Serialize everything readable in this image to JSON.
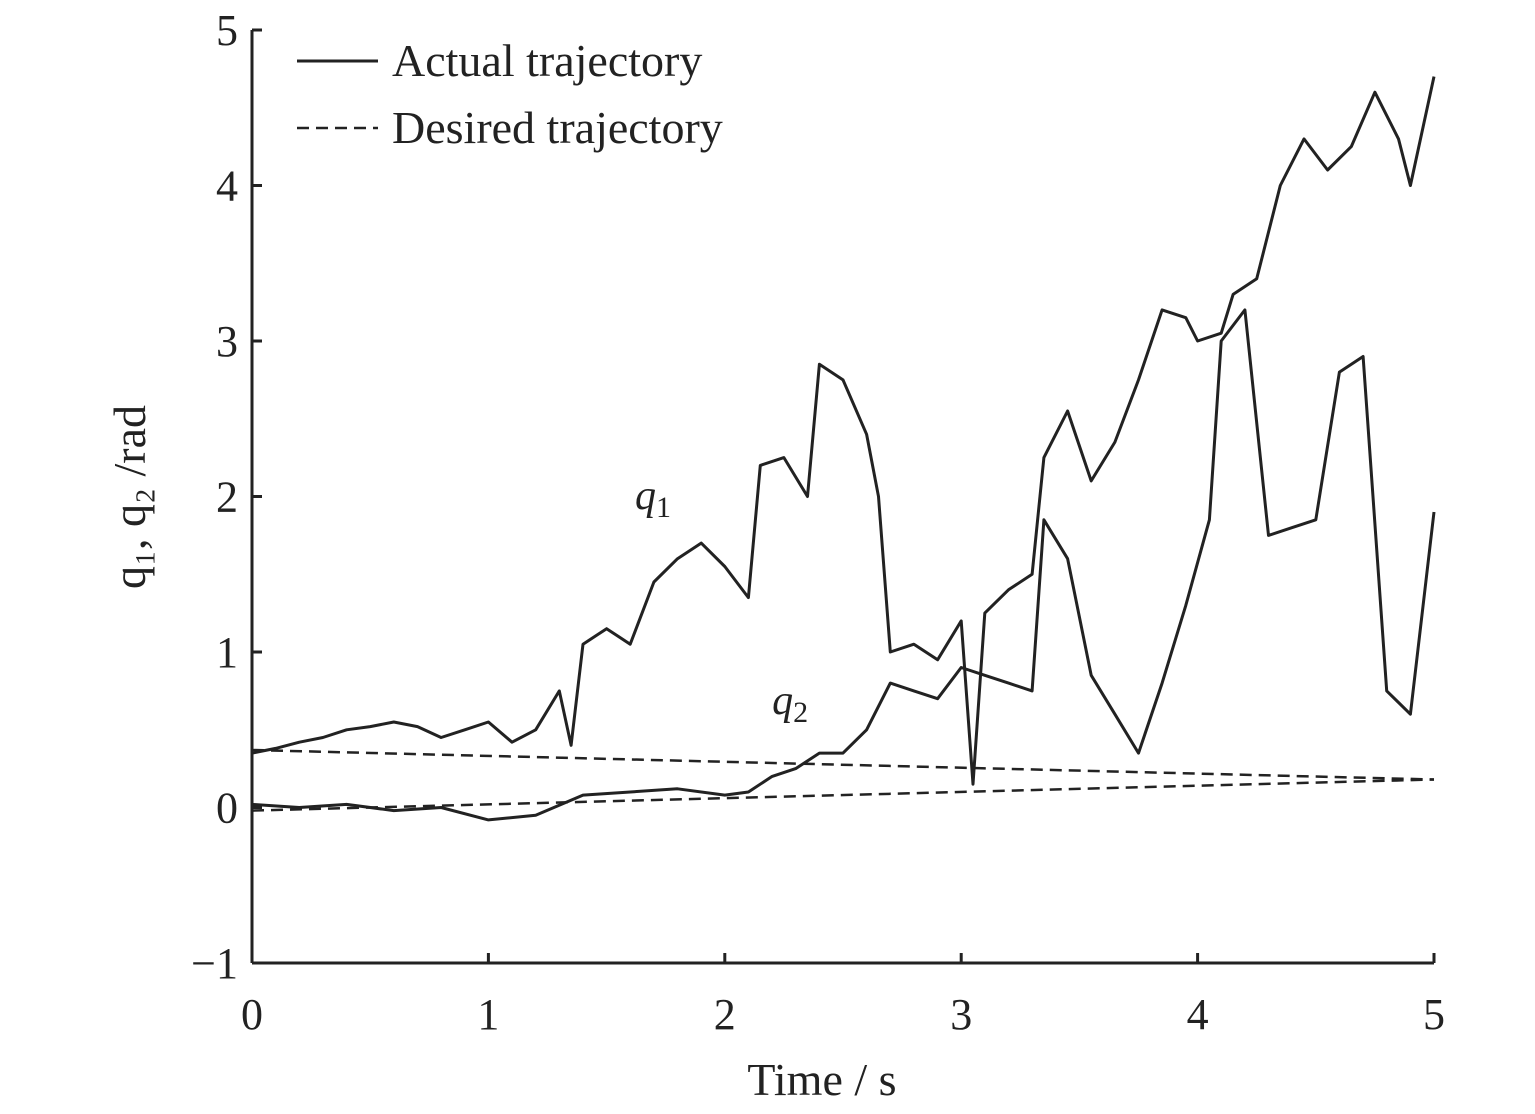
{
  "chart_data": {
    "type": "line",
    "title": "",
    "xlabel": "Time / s",
    "ylabel": "q₁, q₂ /rad",
    "xlim": [
      0,
      5
    ],
    "ylim": [
      -1,
      5
    ],
    "xticks": [
      "0",
      "1",
      "2",
      "3",
      "4",
      "5"
    ],
    "yticks": [
      "−1",
      "0",
      "1",
      "2",
      "3",
      "4",
      "5"
    ],
    "grid": false,
    "legend": {
      "position": "top-left",
      "entries": [
        {
          "label": "Actual trajectory",
          "style": "solid"
        },
        {
          "label": "Desired trajectory",
          "style": "dashed"
        }
      ]
    },
    "annotations": [
      {
        "text": "q",
        "sub": "1",
        "x": 1.62,
        "y": 1.92
      },
      {
        "text": "q",
        "sub": "2",
        "x": 2.2,
        "y": 0.6
      }
    ],
    "series": [
      {
        "label": "q1",
        "style": "solid",
        "x": [
          0,
          0.1,
          0.2,
          0.3,
          0.4,
          0.5,
          0.6,
          0.7,
          0.8,
          0.9,
          1.0,
          1.1,
          1.2,
          1.3,
          1.35,
          1.4,
          1.5,
          1.6,
          1.7,
          1.8,
          1.9,
          2.0,
          2.1,
          2.15,
          2.25,
          2.35,
          2.4,
          2.5,
          2.6,
          2.65,
          2.7,
          2.8,
          2.9,
          3.0,
          3.05,
          3.1,
          3.2,
          3.3,
          3.35,
          3.45,
          3.55,
          3.65,
          3.75,
          3.85,
          3.95,
          4.0,
          4.1,
          4.15,
          4.25,
          4.35,
          4.45,
          4.55,
          4.65,
          4.75,
          4.85,
          4.9,
          5.0
        ],
        "y": [
          0.35,
          0.38,
          0.42,
          0.45,
          0.5,
          0.52,
          0.55,
          0.52,
          0.45,
          0.5,
          0.55,
          0.42,
          0.5,
          0.75,
          0.4,
          1.05,
          1.15,
          1.05,
          1.45,
          1.6,
          1.7,
          1.55,
          1.35,
          2.2,
          2.25,
          2.0,
          2.85,
          2.75,
          2.4,
          2.0,
          1.0,
          1.05,
          0.95,
          1.2,
          0.15,
          1.25,
          1.4,
          1.5,
          2.25,
          2.55,
          2.1,
          2.35,
          2.75,
          3.2,
          3.15,
          3.0,
          3.05,
          3.3,
          3.4,
          4.0,
          4.3,
          4.1,
          4.25,
          4.6,
          4.3,
          4.0,
          4.7
        ]
      },
      {
        "label": "q2",
        "style": "solid",
        "x": [
          0,
          0.2,
          0.4,
          0.6,
          0.8,
          1.0,
          1.2,
          1.4,
          1.6,
          1.8,
          2.0,
          2.1,
          2.2,
          2.3,
          2.4,
          2.5,
          2.6,
          2.7,
          2.8,
          2.9,
          3.0,
          3.1,
          3.2,
          3.3,
          3.35,
          3.45,
          3.55,
          3.65,
          3.75,
          3.85,
          3.95,
          4.05,
          4.1,
          4.2,
          4.3,
          4.4,
          4.5,
          4.6,
          4.7,
          4.8,
          4.9,
          5.0
        ],
        "y": [
          0.02,
          0.0,
          0.02,
          -0.02,
          0.0,
          -0.08,
          -0.05,
          0.08,
          0.1,
          0.12,
          0.08,
          0.1,
          0.2,
          0.25,
          0.35,
          0.35,
          0.5,
          0.8,
          0.75,
          0.7,
          0.9,
          0.85,
          0.8,
          0.75,
          1.85,
          1.6,
          0.85,
          0.6,
          0.35,
          0.8,
          1.3,
          1.85,
          3.0,
          3.2,
          1.75,
          1.8,
          1.85,
          2.8,
          2.9,
          0.75,
          0.6,
          1.9
        ]
      },
      {
        "label": "q1 desired",
        "style": "dashed",
        "x": [
          0,
          5
        ],
        "y": [
          0.37,
          0.18
        ]
      },
      {
        "label": "q2 desired",
        "style": "dashed",
        "x": [
          0,
          5
        ],
        "y": [
          -0.02,
          0.18
        ]
      }
    ]
  }
}
